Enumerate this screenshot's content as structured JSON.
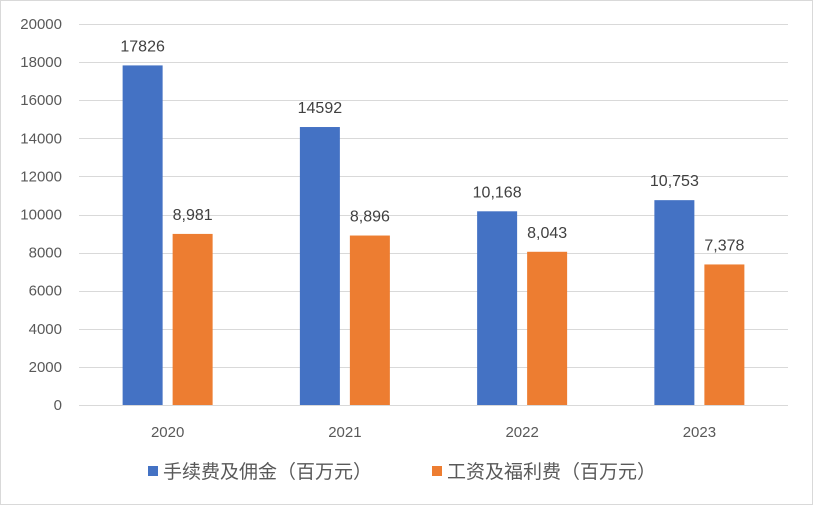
{
  "chart_data": {
    "type": "bar",
    "title": "",
    "xlabel": "",
    "ylabel": "",
    "categories": [
      "2020",
      "2021",
      "2022",
      "2023"
    ],
    "ylim": [
      0,
      20000
    ],
    "yticks": [
      0,
      2000,
      4000,
      6000,
      8000,
      10000,
      12000,
      14000,
      16000,
      18000,
      20000
    ],
    "grid": true,
    "legend": "bottom",
    "series": [
      {
        "name": "手续费及佣金（百万元）",
        "color": "#4472C4",
        "values": [
          17826,
          14592,
          10168,
          10753
        ],
        "labels": [
          "17826",
          "14592",
          "10,168",
          "10,753"
        ]
      },
      {
        "name": "工资及福利费（百万元）",
        "color": "#ED7D31",
        "values": [
          8981,
          8896,
          8043,
          7378
        ],
        "labels": [
          "8,981",
          "8,896",
          "8,043",
          "7,378"
        ]
      }
    ]
  }
}
